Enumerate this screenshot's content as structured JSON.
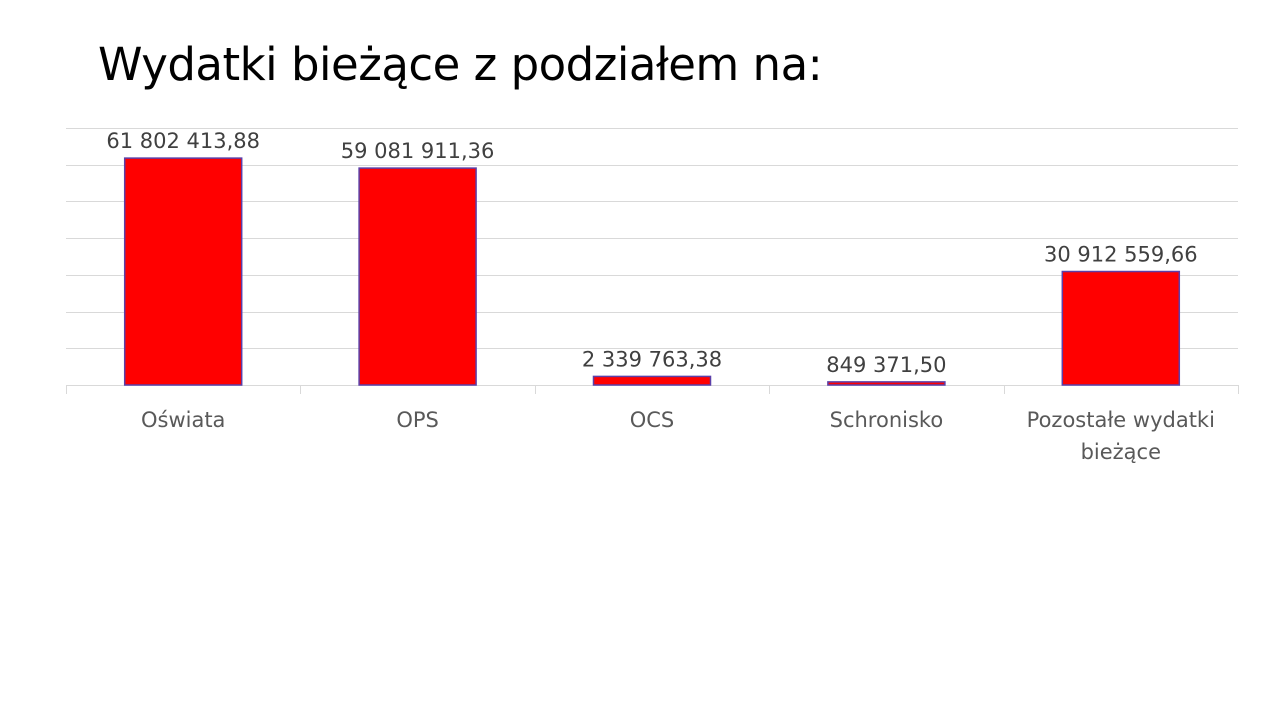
{
  "slide": {
    "title": "Wydatki bieżące z podziałem na:"
  },
  "chart_data": {
    "type": "bar",
    "title": "",
    "xlabel": "",
    "ylabel": "",
    "categories": [
      [
        "Oświata"
      ],
      [
        "OPS"
      ],
      [
        "OCS"
      ],
      [
        "Schronisko"
      ],
      [
        "Pozostałe wydatki",
        "bieżące"
      ]
    ],
    "values": [
      61802413.88,
      59081911.36,
      2339763.38,
      849371.5,
      30912559.66
    ],
    "data_labels": [
      "61 802 413,88",
      "59 081 911,36",
      "2 339 763,38",
      "849 371,50",
      "30 912 559,66"
    ],
    "ylim": [
      0,
      70000000
    ],
    "y_gridline_step": 10000000,
    "y_axis_visible": false,
    "grid": true,
    "legend": "none",
    "colors": {
      "bar_fill": "#ff0000",
      "bar_stroke": "#5b3fa8",
      "gridline": "#d9d9d9",
      "axis_line": "#d9d9d9",
      "label_text": "#404040",
      "category_text": "#595959"
    }
  }
}
